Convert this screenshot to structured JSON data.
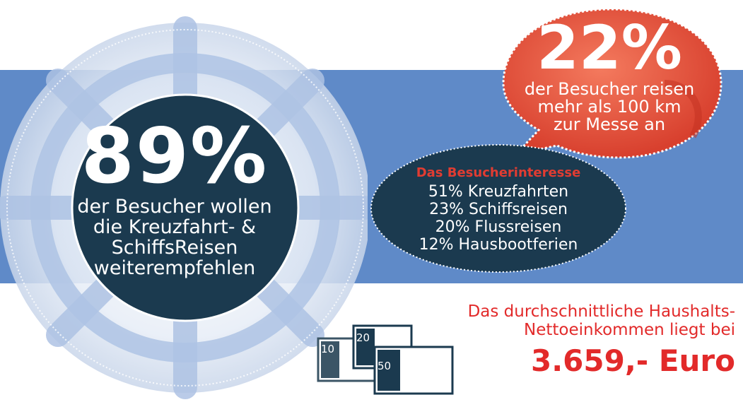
{
  "visitor_recommend": {
    "percent": "89%",
    "lines": [
      "der Besucher wollen",
      "die Kreuzfahrt- &",
      "SchiffsReisen",
      "weiterempfehlen"
    ]
  },
  "visitor_travel": {
    "percent": "22%",
    "lines": [
      "der Besucher reisen",
      "mehr als 100 km",
      "zur Messe an"
    ]
  },
  "visitor_interest": {
    "title": "Das Besucherinteresse",
    "items": [
      "51% Kreuzfahrten",
      "23% Schiffsreisen",
      "20% Flussreisen",
      "12% Hausbootferien"
    ]
  },
  "income": {
    "line1": "Das durchschnittliche Haushalts-",
    "line2": "Nettoeinkommen liegt bei",
    "amount": "3.659,- Euro"
  },
  "banknotes": [
    "10",
    "20",
    "50"
  ],
  "colors": {
    "band": "#5f8ac8",
    "navy": "#1b3a4f",
    "coral": "#e8503a",
    "red_text": "#e22a2a",
    "white": "#ffffff"
  },
  "icons": [
    "ship-wheel-icon",
    "speech-bubble-icon",
    "banknotes-icon"
  ]
}
